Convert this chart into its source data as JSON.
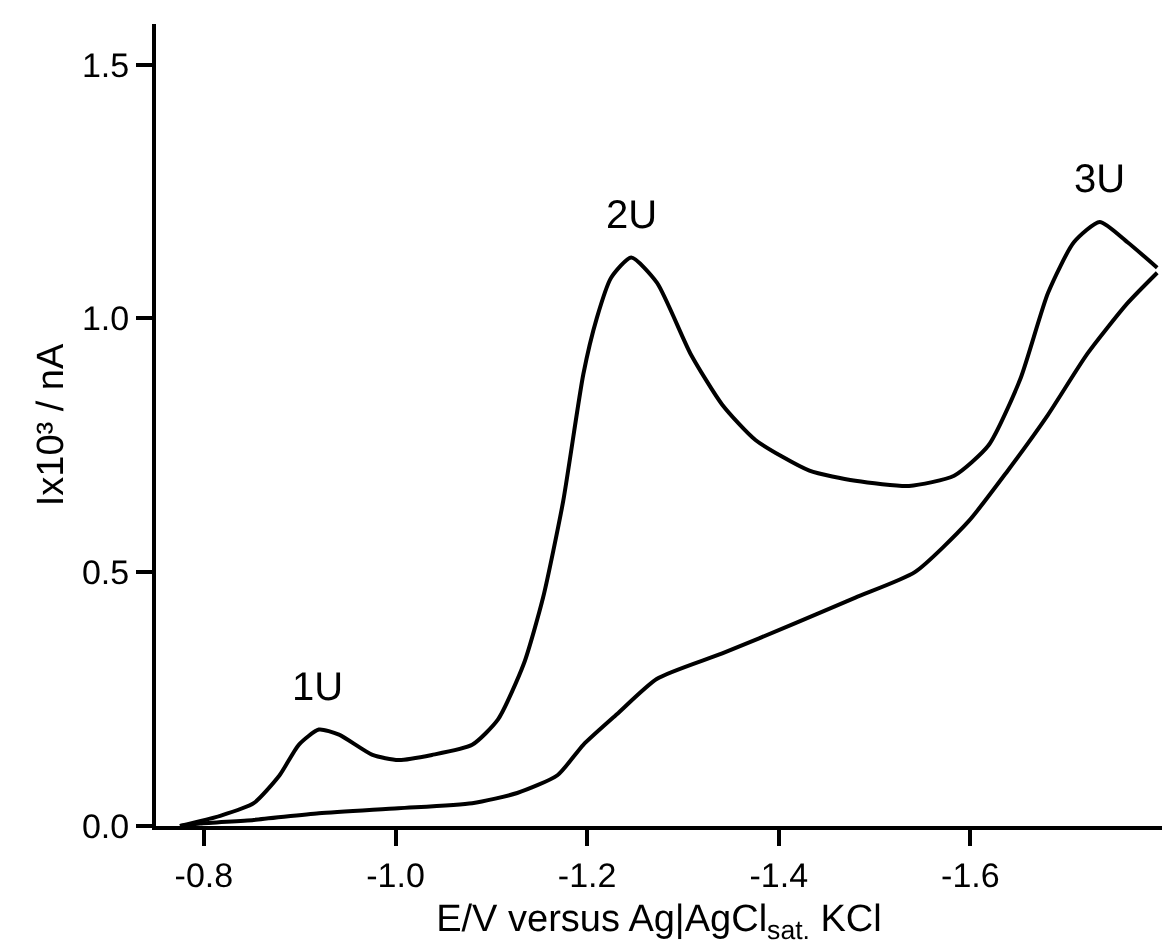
{
  "chart_data": {
    "type": "line",
    "xlabel": "E/V versus Ag|AgCl$_{sat.}$ KCl",
    "ylabel": "Ix10³ / nA",
    "xlim": [
      -0.75,
      -1.8
    ],
    "ylim": [
      0,
      1.58
    ],
    "xticks": [
      {
        "value": -0.8,
        "label": "-0.8"
      },
      {
        "value": -1.0,
        "label": "-1.0"
      },
      {
        "value": -1.2,
        "label": "-1.2"
      },
      {
        "value": -1.4,
        "label": "-1.4"
      },
      {
        "value": -1.6,
        "label": "-1.6"
      }
    ],
    "yticks": [
      {
        "value": 0,
        "label": "0.0"
      },
      {
        "value": 0.5,
        "label": "0.5"
      },
      {
        "value": 1.0,
        "label": "1.0"
      },
      {
        "value": 1.5,
        "label": "1.5"
      }
    ],
    "legend": false,
    "marker": "none",
    "line_style": "solid",
    "series": [
      {
        "color": "#000000",
        "x": [
          -0.775,
          -0.817,
          -0.852,
          -0.879,
          -0.899,
          -0.92,
          -0.941,
          -0.976,
          -1.003,
          -1.038,
          -1.08,
          -1.107,
          -1.134,
          -1.154,
          -1.175,
          -1.196,
          -1.21,
          -1.225,
          -1.246,
          -1.273,
          -1.308,
          -1.341,
          -1.376,
          -1.432,
          -1.48,
          -1.536,
          -1.583,
          -1.619,
          -1.652,
          -1.681,
          -1.708,
          -1.735,
          -1.764,
          -1.795
        ],
        "values": [
          0,
          0.02,
          0.045,
          0.1,
          0.16,
          0.19,
          0.18,
          0.14,
          0.13,
          0.14,
          0.16,
          0.21,
          0.32,
          0.45,
          0.64,
          0.89,
          1.0,
          1.08,
          1.12,
          1.07,
          0.93,
          0.83,
          0.76,
          0.7,
          0.68,
          0.67,
          0.69,
          0.75,
          0.88,
          1.05,
          1.15,
          1.19,
          1.15,
          1.1
        ]
      },
      {
        "color": "#000000",
        "x": [
          -1.795,
          -1.764,
          -1.722,
          -1.681,
          -1.639,
          -1.598,
          -1.542,
          -1.48,
          -1.418,
          -1.341,
          -1.273,
          -1.231,
          -1.196,
          -1.169,
          -1.127,
          -1.08,
          -1.003,
          -0.92,
          -0.852,
          -0.796,
          -0.775
        ],
        "values": [
          1.09,
          1.03,
          0.93,
          0.81,
          0.7,
          0.6,
          0.5,
          0.45,
          0.4,
          0.34,
          0.29,
          0.22,
          0.16,
          0.1,
          0.065,
          0.045,
          0.035,
          0.025,
          0.012,
          0.005,
          0
        ]
      }
    ],
    "annotations": [
      {
        "text": "1U",
        "x": -0.92,
        "y": 0.19
      },
      {
        "text": "2U",
        "x": -1.246,
        "y": 1.12
      },
      {
        "text": "3U",
        "x": -1.735,
        "y": 1.19
      }
    ]
  }
}
